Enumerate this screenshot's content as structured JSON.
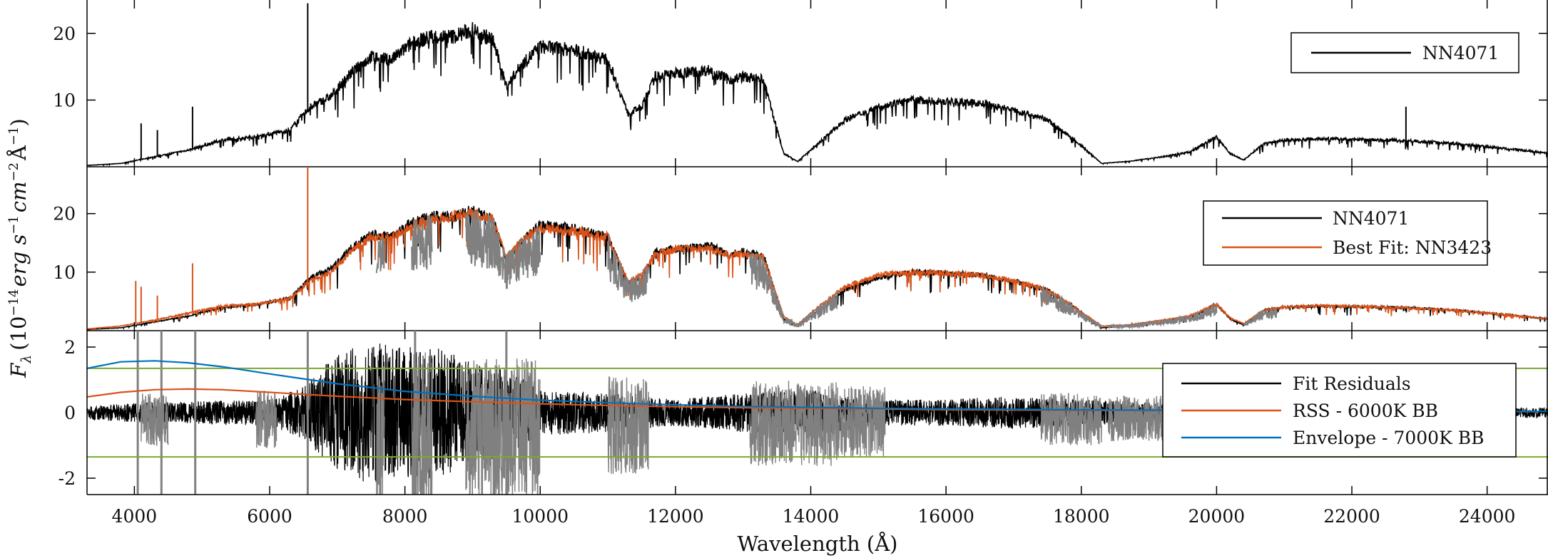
{
  "colors": {
    "spectrum": "#000000",
    "telluric": "#808080",
    "best_fit": "#d95319",
    "rss_bb": "#d95319",
    "envelope_bb": "#0072bd",
    "threshold": "#77ac30"
  },
  "chart_data": [
    {
      "type": "line",
      "panel": "top",
      "xlim": [
        3300,
        24900
      ],
      "ylim": [
        0,
        25
      ],
      "yticks": [
        10,
        20
      ],
      "ytick_labels": [
        "10",
        "20"
      ],
      "legend_position": "top-right",
      "series": [
        {
          "name": "NN4071",
          "color": "#000000",
          "x": [
            3300,
            3800,
            4300,
            4800,
            5300,
            5800,
            6300,
            6600,
            6900,
            7200,
            7500,
            7800,
            8100,
            8400,
            8700,
            9000,
            9300,
            9500,
            9700,
            10000,
            10500,
            11000,
            11300,
            11500,
            11700,
            12000,
            12500,
            12800,
            13000,
            13300,
            13600,
            13800,
            14000,
            14500,
            15000,
            15500,
            16000,
            16500,
            17000,
            17500,
            17900,
            18300,
            18700,
            19200,
            19600,
            20000,
            20200,
            20400,
            20700,
            21000,
            21500,
            22000,
            22500,
            23000,
            23500,
            24000,
            24500,
            24900
          ],
          "y": [
            0.2,
            0.5,
            1.5,
            2.5,
            4.0,
            4.5,
            5.5,
            9.0,
            10.5,
            14.0,
            16.5,
            16.0,
            18.5,
            19.5,
            19.5,
            20.5,
            19.0,
            12.0,
            15.0,
            18.0,
            17.5,
            16.0,
            8.0,
            9.0,
            13.5,
            14.0,
            14.5,
            13.0,
            13.5,
            13.0,
            2.0,
            0.8,
            2.5,
            7.0,
            9.0,
            10.0,
            9.8,
            9.5,
            8.5,
            7.0,
            4.0,
            0.5,
            0.8,
            1.5,
            2.2,
            4.5,
            2.0,
            1.0,
            3.5,
            4.0,
            4.2,
            4.1,
            4.0,
            3.8,
            3.5,
            3.0,
            2.5,
            2.0
          ]
        }
      ],
      "spikes": [
        {
          "x": 4100,
          "y": 6.5
        },
        {
          "x": 4340,
          "y": 5.5
        },
        {
          "x": 4860,
          "y": 9.0
        },
        {
          "x": 6563,
          "y": 24.5
        },
        {
          "x": 7150,
          "y": 13.5
        },
        {
          "x": 22800,
          "y": 9.0
        }
      ]
    },
    {
      "type": "line",
      "panel": "middle",
      "xlim": [
        3300,
        24900
      ],
      "ylim": [
        0,
        28
      ],
      "yticks": [
        10,
        20
      ],
      "ytick_labels": [
        "10",
        "20"
      ],
      "legend_position": "top-right",
      "series": [
        {
          "name": "NN4071",
          "color": "#000000",
          "x": [
            3300,
            3800,
            4300,
            4800,
            5300,
            5800,
            6300,
            6600,
            6900,
            7200,
            7500,
            7800,
            8100,
            8400,
            8700,
            9000,
            9300,
            9500,
            9700,
            10000,
            10500,
            11000,
            11300,
            11500,
            11700,
            12000,
            12500,
            12800,
            13000,
            13300,
            13600,
            13800,
            14000,
            14500,
            15000,
            15500,
            16000,
            16500,
            17000,
            17500,
            17900,
            18300,
            18700,
            19200,
            19600,
            20000,
            20200,
            20400,
            20700,
            21000,
            21500,
            22000,
            22500,
            23000,
            23500,
            24000,
            24500,
            24900
          ],
          "y": [
            0.2,
            0.5,
            1.5,
            2.5,
            4.0,
            4.5,
            5.5,
            9.0,
            10.5,
            14.0,
            16.5,
            16.0,
            18.5,
            19.5,
            19.5,
            20.5,
            19.0,
            12.0,
            15.0,
            18.0,
            17.5,
            16.0,
            8.0,
            9.0,
            13.5,
            14.0,
            14.5,
            13.0,
            13.5,
            13.0,
            2.0,
            0.8,
            2.5,
            7.0,
            9.0,
            10.0,
            9.8,
            9.5,
            8.5,
            7.0,
            4.0,
            0.5,
            0.8,
            1.5,
            2.2,
            4.5,
            2.0,
            1.0,
            3.5,
            4.0,
            4.2,
            4.1,
            4.0,
            3.8,
            3.5,
            3.0,
            2.5,
            2.0
          ]
        },
        {
          "name": "Best Fit: NN3423",
          "color": "#d95319",
          "x": [
            3300,
            3800,
            4300,
            4800,
            5300,
            5800,
            6300,
            6600,
            6900,
            7200,
            7500,
            7800,
            8100,
            8400,
            8700,
            9000,
            9300,
            9500,
            9700,
            10000,
            10500,
            11000,
            11300,
            11500,
            11700,
            12000,
            12500,
            12800,
            13000,
            13300,
            13600,
            13800,
            14000,
            14500,
            15000,
            15500,
            16000,
            16500,
            17000,
            17500,
            17900,
            18300,
            18700,
            19200,
            19600,
            20000,
            20200,
            20400,
            20700,
            21000,
            21500,
            22000,
            22500,
            23000,
            23500,
            24000,
            24500,
            24900
          ],
          "y": [
            0.3,
            0.8,
            1.8,
            3.0,
            4.2,
            4.5,
            5.5,
            8.5,
            10.0,
            13.5,
            16.0,
            16.0,
            18.0,
            19.0,
            19.5,
            20.0,
            19.0,
            12.5,
            15.0,
            17.5,
            17.0,
            16.0,
            8.5,
            9.5,
            13.0,
            14.0,
            14.0,
            13.0,
            13.0,
            12.5,
            2.5,
            1.0,
            3.0,
            7.5,
            9.5,
            10.0,
            9.8,
            9.5,
            8.5,
            7.0,
            4.0,
            0.8,
            1.0,
            1.8,
            2.5,
            4.5,
            2.2,
            1.2,
            3.5,
            4.0,
            4.3,
            4.2,
            4.0,
            3.8,
            3.5,
            3.0,
            2.5,
            2.0
          ]
        }
      ],
      "spikes": [
        {
          "x": 4020,
          "y": 8.5
        },
        {
          "x": 4100,
          "y": 7.5
        },
        {
          "x": 4340,
          "y": 6.0
        },
        {
          "x": 4860,
          "y": 11.5
        },
        {
          "x": 6563,
          "y": 28.0
        }
      ],
      "telluric_ranges": [
        [
          7580,
          7700
        ],
        [
          8100,
          8400
        ],
        [
          8900,
          10000
        ],
        [
          11000,
          11600
        ],
        [
          13100,
          14400
        ],
        [
          17400,
          18300
        ],
        [
          18400,
          20000
        ],
        [
          20400,
          20900
        ]
      ]
    },
    {
      "type": "line",
      "panel": "bottom",
      "xlim": [
        3300,
        24900
      ],
      "ylim": [
        -2.5,
        2.5
      ],
      "yticks": [
        -2,
        0,
        2
      ],
      "ytick_labels": [
        "-2",
        "0",
        "2"
      ],
      "legend_position": "bottom-right",
      "threshold_y": [
        1.35,
        -1.35
      ],
      "series": [
        {
          "name": "Fit Residuals",
          "color": "#000000",
          "x": [
            3300,
            4000,
            5000,
            6000,
            6500,
            7000,
            7500,
            8000,
            8500,
            9000,
            9500,
            10000,
            11000,
            12000,
            13000,
            14000,
            15000,
            16000,
            17000,
            18000,
            19000,
            20000,
            21000,
            22000,
            23000,
            24000,
            24900
          ],
          "amplitude": [
            0.2,
            0.3,
            0.35,
            0.4,
            0.8,
            1.8,
            2.2,
            2.0,
            2.0,
            1.5,
            1.4,
            0.7,
            0.6,
            0.4,
            0.6,
            0.7,
            0.4,
            0.4,
            0.5,
            0.4,
            0.3,
            0.25,
            0.25,
            0.2,
            0.2,
            0.15,
            0.15
          ]
        },
        {
          "name": "RSS - 6000K BB",
          "color": "#d95319",
          "x": [
            3300,
            3800,
            4300,
            4800,
            5300,
            6000,
            7000,
            8000,
            9000,
            10000,
            11000,
            12000,
            13000,
            14000,
            15000,
            16000,
            17000,
            18000,
            19000,
            20000,
            21000,
            22000,
            23000,
            24000,
            24900
          ],
          "y": [
            0.48,
            0.62,
            0.7,
            0.72,
            0.7,
            0.62,
            0.5,
            0.4,
            0.33,
            0.27,
            0.22,
            0.18,
            0.15,
            0.13,
            0.11,
            0.09,
            0.08,
            0.07,
            0.06,
            0.055,
            0.05,
            0.045,
            0.04,
            0.035,
            0.03
          ]
        },
        {
          "name": "Envelope - 7000K BB",
          "color": "#0072bd",
          "x": [
            3300,
            3800,
            4300,
            4800,
            5300,
            6000,
            7000,
            8000,
            9000,
            10000,
            11000,
            12000,
            13000,
            14000,
            15000,
            16000,
            17000,
            18000,
            19000,
            20000,
            21000,
            22000,
            23000,
            24000,
            24900
          ],
          "y": [
            1.35,
            1.55,
            1.58,
            1.52,
            1.4,
            1.18,
            0.88,
            0.65,
            0.5,
            0.38,
            0.3,
            0.24,
            0.19,
            0.16,
            0.13,
            0.11,
            0.1,
            0.085,
            0.075,
            0.065,
            0.058,
            0.05,
            0.045,
            0.04,
            0.035
          ]
        }
      ],
      "gray_segments": [
        {
          "x": [
            4100,
            4500
          ],
          "amp": 0.8
        },
        {
          "x": [
            5800,
            6100
          ],
          "amp": 0.9
        },
        {
          "x": [
            7580,
            7700
          ],
          "amp": 2.5
        },
        {
          "x": [
            8100,
            8400
          ],
          "amp": 2.5
        },
        {
          "x": [
            8900,
            10000
          ],
          "amp": 2.2
        },
        {
          "x": [
            11000,
            11600
          ],
          "amp": 1.5
        },
        {
          "x": [
            13100,
            14400
          ],
          "amp": 1.3
        },
        {
          "x": [
            14400,
            15100
          ],
          "amp": 1.1
        },
        {
          "x": [
            17400,
            18300
          ],
          "amp": 0.8
        },
        {
          "x": [
            18400,
            19200
          ],
          "amp": 0.7
        }
      ],
      "gray_spikes": [
        {
          "x": 4050,
          "ymin": -2.5,
          "ymax": 2.5
        },
        {
          "x": 4400,
          "ymin": -2.5,
          "ymax": 2.5
        },
        {
          "x": 4900,
          "ymin": -2.5,
          "ymax": 2.5
        },
        {
          "x": 6563,
          "ymin": -2.5,
          "ymax": 2.5
        },
        {
          "x": 8150,
          "ymin": -2.5,
          "ymax": 2.5
        },
        {
          "x": 9500,
          "ymin": -2.5,
          "ymax": 2.5
        }
      ]
    }
  ],
  "axes": {
    "xlabel": "Wavelength (Å)",
    "ylabel_main": "F",
    "ylabel_sub": "λ",
    "ylabel_rest_open": "(10",
    "ylabel_exp1": "−14",
    "ylabel_erg": "erg s",
    "ylabel_exp2": "−1",
    "ylabel_cm": "cm",
    "ylabel_exp3": "−2",
    "ylabel_A": "Å",
    "ylabel_exp4": "−1",
    "ylabel_close": ")",
    "xticks": [
      4000,
      6000,
      8000,
      10000,
      12000,
      14000,
      16000,
      18000,
      20000,
      22000,
      24000
    ],
    "xtick_labels": [
      "4000",
      "6000",
      "8000",
      "10000",
      "12000",
      "14000",
      "16000",
      "18000",
      "20000",
      "22000",
      "24000"
    ]
  },
  "legends": {
    "top": [
      "NN4071"
    ],
    "middle": [
      "NN4071",
      "Best Fit: NN3423"
    ],
    "bottom": [
      "Fit Residuals",
      "RSS - 6000K BB",
      "Envelope - 7000K BB"
    ]
  }
}
